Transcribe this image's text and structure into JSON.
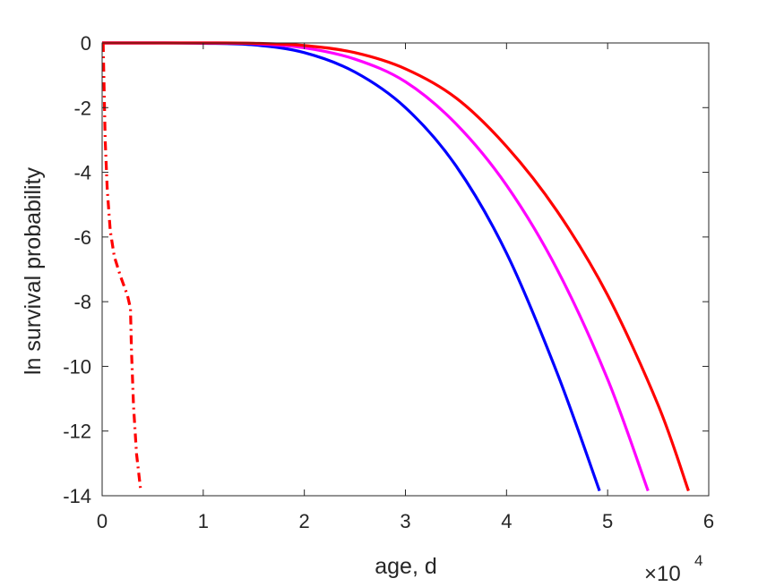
{
  "chart_data": {
    "type": "line",
    "xlabel": "age, d",
    "ylabel": "ln survival probability",
    "x_multiplier": "×10",
    "x_multiplier_exponent": "4",
    "xlim": [
      0,
      6
    ],
    "ylim": [
      -14,
      0
    ],
    "x_ticks": [
      "0",
      "1",
      "2",
      "3",
      "4",
      "5",
      "6"
    ],
    "y_ticks": [
      "0",
      "-2",
      "-4",
      "-6",
      "-8",
      "-10",
      "-12",
      "-14"
    ],
    "grid": false,
    "legend": "none",
    "series": [
      {
        "color": "#0000ff",
        "style": "solid",
        "x": [
          0,
          0.5,
          1.0,
          1.5,
          2.0,
          2.5,
          3.0,
          3.5,
          4.0,
          4.5,
          4.92
        ],
        "y": [
          0,
          0,
          -0.01,
          -0.06,
          -0.3,
          -0.9,
          -2.0,
          -3.8,
          -6.5,
          -10.2,
          -13.85
        ]
      },
      {
        "color": "#ff00ff",
        "style": "solid",
        "x": [
          0,
          0.5,
          1.0,
          1.5,
          2.0,
          2.5,
          3.0,
          3.5,
          4.0,
          4.5,
          5.0,
          5.4
        ],
        "y": [
          0,
          0,
          0,
          -0.02,
          -0.15,
          -0.5,
          -1.2,
          -2.5,
          -4.4,
          -7.0,
          -10.4,
          -13.85
        ]
      },
      {
        "color": "#ff0000",
        "style": "solid",
        "x": [
          0,
          0.5,
          1.0,
          1.5,
          2.0,
          2.5,
          3.0,
          3.5,
          4.0,
          4.5,
          5.0,
          5.5,
          5.8
        ],
        "y": [
          0,
          0,
          0,
          -0.01,
          -0.08,
          -0.3,
          -0.8,
          -1.7,
          -3.2,
          -5.2,
          -7.8,
          -11.2,
          -13.85
        ]
      },
      {
        "color": "#ff0000",
        "style": "dashdot",
        "x": [
          0.01,
          0.02,
          0.03,
          0.05,
          0.08,
          0.12,
          0.18,
          0.25,
          0.28,
          0.29,
          0.31,
          0.34,
          0.38
        ],
        "y": [
          0,
          -1.5,
          -3.0,
          -4.5,
          -5.8,
          -6.6,
          -7.2,
          -7.8,
          -8.2,
          -9.5,
          -11.2,
          -12.7,
          -13.8
        ]
      }
    ]
  }
}
